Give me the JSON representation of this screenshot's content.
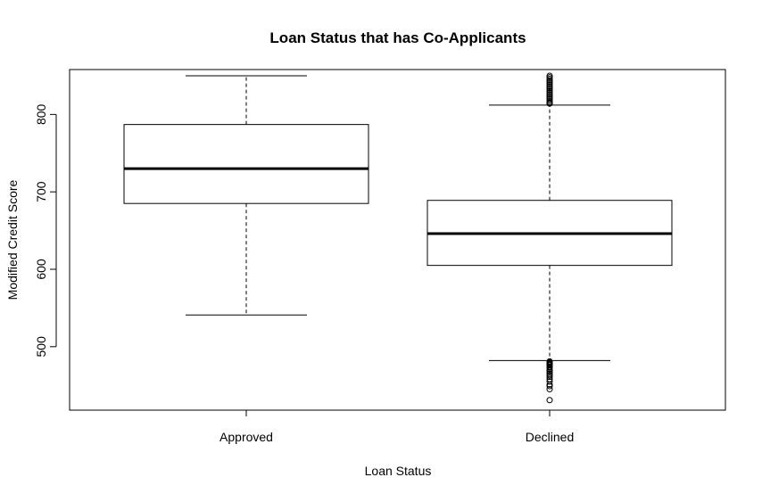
{
  "chart_data": {
    "type": "box",
    "title": "Loan Status that has Co-Applicants",
    "xlabel": "Loan Status",
    "ylabel": "Modified Credit Score",
    "categories": [
      "Approved",
      "Declined"
    ],
    "ylim": [
      418,
      858
    ],
    "yticks": [
      500,
      600,
      700,
      800
    ],
    "grid": false,
    "boxes": [
      {
        "category": "Approved",
        "whisker_low": 541,
        "q1": 685,
        "median": 730,
        "q3": 787,
        "whisker_high": 850,
        "outliers": []
      },
      {
        "category": "Declined",
        "whisker_low": 482,
        "q1": 605,
        "median": 646,
        "q3": 689,
        "whisker_high": 812,
        "outliers": [
          431,
          445,
          449,
          451,
          455,
          458,
          461,
          463,
          465,
          467,
          469,
          471,
          473,
          474,
          476,
          477,
          478,
          479,
          480,
          481,
          814,
          815,
          816,
          818,
          820,
          822,
          824,
          826,
          828,
          830,
          832,
          834,
          836,
          838,
          840,
          842,
          844,
          846,
          848,
          850
        ]
      }
    ]
  }
}
